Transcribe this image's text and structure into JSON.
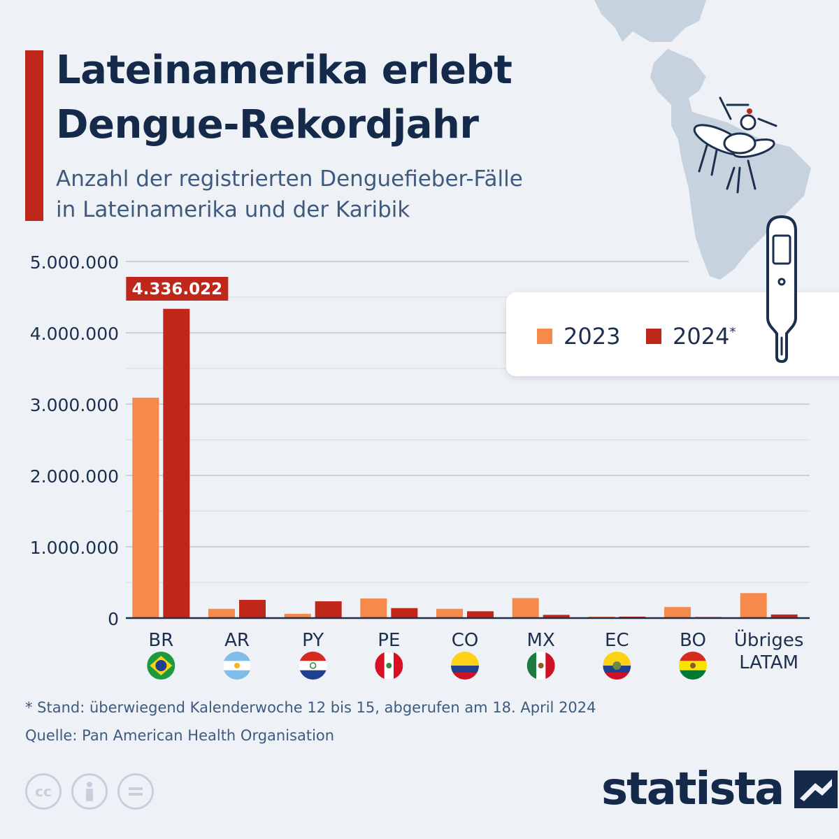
{
  "header": {
    "title_line1": "Lateinamerika erlebt",
    "title_line2": "Dengue-Rekordjahr",
    "subtitle_line1": "Anzahl der registrierten Denguefieber-Fälle",
    "subtitle_line2": "in Lateinamerika und der Karibik"
  },
  "legend": {
    "items": [
      {
        "label": "2023",
        "color": "#f58a4a"
      },
      {
        "label": "2024",
        "sup": "*",
        "color": "#c0271b"
      }
    ]
  },
  "chart_data": {
    "type": "bar",
    "categories": [
      "BR",
      "AR",
      "PY",
      "PE",
      "CO",
      "MX",
      "EC",
      "BO",
      "Übriges LATAM"
    ],
    "series": [
      {
        "name": "2023",
        "color": "#f58a4a",
        "values": [
          3090000,
          130000,
          60000,
          275000,
          130000,
          280000,
          20000,
          155000,
          350000
        ]
      },
      {
        "name": "2024*",
        "color": "#c0271b",
        "values": [
          4336022,
          255000,
          235000,
          140000,
          95000,
          45000,
          20000,
          15000,
          50000
        ]
      }
    ],
    "yticks": [
      "0",
      "1.000.000",
      "2.000.000",
      "3.000.000",
      "4.000.000",
      "5.000.000"
    ],
    "ylim": [
      0,
      5000000
    ],
    "highlight_label": "4.336.022",
    "grid": true,
    "legend_position": "top-right"
  },
  "flags": [
    {
      "code": "BR",
      "icon": "brazil-flag-icon"
    },
    {
      "code": "AR",
      "icon": "argentina-flag-icon"
    },
    {
      "code": "PY",
      "icon": "paraguay-flag-icon"
    },
    {
      "code": "PE",
      "icon": "peru-flag-icon"
    },
    {
      "code": "CO",
      "icon": "colombia-flag-icon"
    },
    {
      "code": "MX",
      "icon": "mexico-flag-icon"
    },
    {
      "code": "EC",
      "icon": "ecuador-flag-icon"
    },
    {
      "code": "BO",
      "icon": "bolivia-flag-icon"
    }
  ],
  "footer": {
    "footnote": "* Stand: überwiegend Kalenderwoche 12 bis 15, abgerufen am 18. April 2024",
    "source": "Quelle: Pan American Health Organisation",
    "license_icons": [
      "cc-icon",
      "attribution-icon",
      "no-derivatives-icon"
    ],
    "brand": "statista"
  },
  "colors": {
    "accent": "#c0271b",
    "bar_2023": "#f58a4a",
    "bar_2024": "#c0271b",
    "title": "#152a4a",
    "background": "#eef2f7"
  }
}
